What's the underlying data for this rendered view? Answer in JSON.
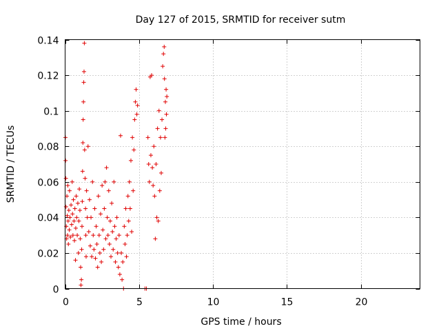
{
  "chart_data": {
    "type": "scatter",
    "title": "Day 127 of 2015, SRMTID for receiver sutm",
    "xlabel": "GPS time / hours",
    "ylabel": "SRMTID / TECUs",
    "xlim": [
      0,
      24
    ],
    "ylim": [
      0,
      0.14
    ],
    "xticks": [
      0,
      5,
      10,
      15,
      20
    ],
    "xtick_labels": [
      "0",
      "5",
      "10",
      "15",
      "20"
    ],
    "yticks": [
      0,
      0.02,
      0.04,
      0.06,
      0.08,
      0.1,
      0.12,
      0.14
    ],
    "ytick_labels": [
      "0",
      "0.02",
      "0.04",
      "0.06",
      "0.08",
      "0.1",
      "0.12",
      "0.14"
    ],
    "grid": true,
    "marker": "+",
    "color": "#e00000",
    "series": [
      {
        "points": [
          [
            0.02,
            0.085
          ],
          [
            0.03,
            0.072
          ],
          [
            0.05,
            0.062
          ],
          [
            0.06,
            0.046
          ],
          [
            0.08,
            0.035
          ],
          [
            0.1,
            0.028
          ],
          [
            0.12,
            0.052
          ],
          [
            0.14,
            0.041
          ],
          [
            0.16,
            0.03
          ],
          [
            0.18,
            0.058
          ],
          [
            0.2,
            0.038
          ],
          [
            0.22,
            0.025
          ],
          [
            0.25,
            0.044
          ],
          [
            0.28,
            0.033
          ],
          [
            0.3,
            0.055
          ],
          [
            0.33,
            0.04
          ],
          [
            0.36,
            0.029
          ],
          [
            0.4,
            0.047
          ],
          [
            0.44,
            0.036
          ],
          [
            0.48,
            0.06
          ],
          [
            0.5,
            0.042
          ],
          [
            0.53,
            0.03
          ],
          [
            0.56,
            0.05
          ],
          [
            0.6,
            0.038
          ],
          [
            0.63,
            0.027
          ],
          [
            0.66,
            0.045
          ],
          [
            0.7,
            0.016
          ],
          [
            0.72,
            0.034
          ],
          [
            0.75,
            0.052
          ],
          [
            0.78,
            0.04
          ],
          [
            0.82,
            0.03
          ],
          [
            0.86,
            0.048
          ],
          [
            0.9,
            0.02
          ],
          [
            0.93,
            0.038
          ],
          [
            0.96,
            0.056
          ],
          [
            1.0,
            0.044
          ],
          [
            1.02,
            0.028
          ],
          [
            1.05,
            0.012
          ],
          [
            1.07,
            0.002
          ],
          [
            1.1,
            0.005
          ],
          [
            1.12,
            0.022
          ],
          [
            1.14,
            0.035
          ],
          [
            1.16,
            0.049
          ],
          [
            1.18,
            0.066
          ],
          [
            1.2,
            0.082
          ],
          [
            1.22,
            0.095
          ],
          [
            1.24,
            0.105
          ],
          [
            1.26,
            0.116
          ],
          [
            1.28,
            0.122
          ],
          [
            1.3,
            0.138
          ],
          [
            1.32,
            0.078
          ],
          [
            1.35,
            0.062
          ],
          [
            1.38,
            0.045
          ],
          [
            1.4,
            0.03
          ],
          [
            1.42,
            0.018
          ],
          [
            1.45,
            0.055
          ],
          [
            1.5,
            0.04
          ],
          [
            1.55,
            0.08
          ],
          [
            1.6,
            0.032
          ],
          [
            1.65,
            0.05
          ],
          [
            1.7,
            0.024
          ],
          [
            1.75,
            0.04
          ],
          [
            1.8,
            0.018
          ],
          [
            1.85,
            0.06
          ],
          [
            1.9,
            0.03
          ],
          [
            1.95,
            0.022
          ],
          [
            2.0,
            0.045
          ],
          [
            2.05,
            0.017
          ],
          [
            2.1,
            0.035
          ],
          [
            2.15,
            0.025
          ],
          [
            2.2,
            0.012
          ],
          [
            2.25,
            0.052
          ],
          [
            2.3,
            0.03
          ],
          [
            2.35,
            0.02
          ],
          [
            2.4,
            0.042
          ],
          [
            2.45,
            0.015
          ],
          [
            2.5,
            0.058
          ],
          [
            2.55,
            0.033
          ],
          [
            2.6,
            0.022
          ],
          [
            2.65,
            0.045
          ],
          [
            2.7,
            0.06
          ],
          [
            2.75,
            0.028
          ],
          [
            2.8,
            0.068
          ],
          [
            2.85,
            0.04
          ],
          [
            2.9,
            0.03
          ],
          [
            2.95,
            0.055
          ],
          [
            3.0,
            0.025
          ],
          [
            3.05,
            0.038
          ],
          [
            3.1,
            0.018
          ],
          [
            3.15,
            0.048
          ],
          [
            3.2,
            0.032
          ],
          [
            3.25,
            0.022
          ],
          [
            3.3,
            0.06
          ],
          [
            3.35,
            0.035
          ],
          [
            3.4,
            0.015
          ],
          [
            3.45,
            0.028
          ],
          [
            3.5,
            0.04
          ],
          [
            3.55,
            0.02
          ],
          [
            3.6,
            0.012
          ],
          [
            3.65,
            0.03
          ],
          [
            3.7,
            0.008
          ],
          [
            3.75,
            0.086
          ],
          [
            3.8,
            0.02
          ],
          [
            3.85,
            0.005
          ],
          [
            3.9,
            0.015
          ],
          [
            3.95,
            0.0
          ],
          [
            4.0,
            0.035
          ],
          [
            4.05,
            0.025
          ],
          [
            4.1,
            0.045
          ],
          [
            4.15,
            0.018
          ],
          [
            4.2,
            0.03
          ],
          [
            4.25,
            0.052
          ],
          [
            4.3,
            0.038
          ],
          [
            4.35,
            0.06
          ],
          [
            4.4,
            0.045
          ],
          [
            4.45,
            0.072
          ],
          [
            4.5,
            0.032
          ],
          [
            4.55,
            0.085
          ],
          [
            4.6,
            0.055
          ],
          [
            4.65,
            0.078
          ],
          [
            4.7,
            0.095
          ],
          [
            4.75,
            0.105
          ],
          [
            4.8,
            0.112
          ],
          [
            4.85,
            0.098
          ],
          [
            4.9,
            0.103
          ],
          [
            5.4,
            0.0
          ],
          [
            5.5,
            0.0
          ],
          [
            5.6,
            0.085
          ],
          [
            5.65,
            0.07
          ],
          [
            5.7,
            0.06
          ],
          [
            5.75,
            0.119
          ],
          [
            5.8,
            0.075
          ],
          [
            5.85,
            0.12
          ],
          [
            5.9,
            0.068
          ],
          [
            5.95,
            0.058
          ],
          [
            6.0,
            0.08
          ],
          [
            6.05,
            0.052
          ],
          [
            6.1,
            0.028
          ],
          [
            6.15,
            0.07
          ],
          [
            6.2,
            0.04
          ],
          [
            6.25,
            0.09
          ],
          [
            6.3,
            0.038
          ],
          [
            6.35,
            0.1
          ],
          [
            6.4,
            0.055
          ],
          [
            6.45,
            0.085
          ],
          [
            6.5,
            0.065
          ],
          [
            6.55,
            0.095
          ],
          [
            6.6,
            0.125
          ],
          [
            6.65,
            0.132
          ],
          [
            6.7,
            0.136
          ],
          [
            6.72,
            0.118
          ],
          [
            6.75,
            0.085
          ],
          [
            6.78,
            0.105
          ],
          [
            6.8,
            0.09
          ],
          [
            6.83,
            0.112
          ],
          [
            6.85,
            0.098
          ],
          [
            6.88,
            0.108
          ]
        ]
      }
    ]
  }
}
